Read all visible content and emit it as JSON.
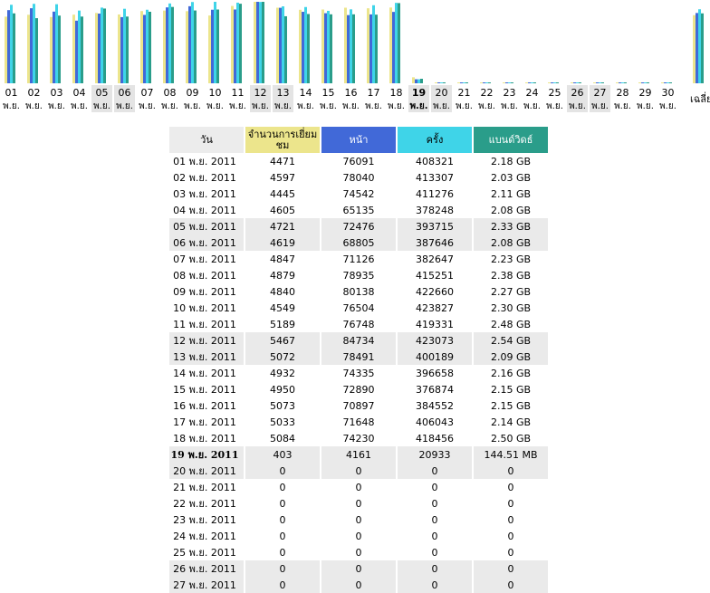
{
  "colors": {
    "visits": "#ece58c",
    "pages": "#4169d8",
    "hits": "#3fd4e8",
    "bandwidth": "#2a9d8a",
    "weekend_bg": "#eaeaea"
  },
  "chart_data": {
    "type": "bar",
    "categories": [
      "01",
      "02",
      "03",
      "04",
      "05",
      "06",
      "07",
      "08",
      "09",
      "10",
      "11",
      "12",
      "13",
      "14",
      "15",
      "16",
      "17",
      "18",
      "19",
      "20",
      "21",
      "22",
      "23",
      "24",
      "25",
      "26",
      "27",
      "28",
      "29",
      "30"
    ],
    "month_label": "พ.ย.",
    "average_label": "เฉลี่ย",
    "highlight_categories": [
      "05",
      "06",
      "12",
      "13",
      "19",
      "20",
      "26",
      "27"
    ],
    "series": [
      {
        "name": "จำนวนการเยี่ยมชม",
        "values": [
          4471,
          4597,
          4445,
          4605,
          4721,
          4619,
          4847,
          4879,
          4840,
          4549,
          5189,
          5467,
          5072,
          4932,
          4950,
          5073,
          5033,
          5084,
          403,
          0,
          0,
          0,
          0,
          0,
          0,
          0,
          0,
          0,
          0,
          0
        ],
        "average": 4570
      },
      {
        "name": "หน้า",
        "values": [
          76091,
          78040,
          74542,
          65135,
          72476,
          68805,
          71126,
          78935,
          80138,
          76504,
          76748,
          84734,
          78491,
          74335,
          72890,
          70897,
          71648,
          74230,
          4161,
          0,
          0,
          0,
          0,
          0,
          0,
          0,
          0,
          0,
          0,
          0
        ],
        "average": 73100
      },
      {
        "name": "ครั้ง",
        "values": [
          408321,
          413307,
          411276,
          378248,
          393715,
          387646,
          382647,
          415251,
          422660,
          423827,
          419331,
          423073,
          400189,
          396658,
          376874,
          384552,
          406043,
          418456,
          20933,
          0,
          0,
          0,
          0,
          0,
          0,
          0,
          0,
          0,
          0,
          0
        ],
        "average": 385000
      },
      {
        "name": "แบนด์วิดธ์",
        "values": [
          2.18,
          2.03,
          2.11,
          2.08,
          2.33,
          2.08,
          2.23,
          2.38,
          2.27,
          2.3,
          2.48,
          2.54,
          2.09,
          2.16,
          2.15,
          2.15,
          2.14,
          2.5,
          0.141,
          0,
          0,
          0,
          0,
          0,
          0,
          0,
          0,
          0,
          0,
          0
        ],
        "average": 2.18
      }
    ]
  },
  "table": {
    "headers": {
      "date": "วัน",
      "visits": "จำนวนการเยี่ยมชม",
      "pages": "หน้า",
      "hits": "ครั้ง",
      "bandwidth": "แบนด์วิดธ์"
    },
    "rows": [
      {
        "date": "01 พ.ย. 2011",
        "visits": "4471",
        "pages": "76091",
        "hits": "408321",
        "bandwidth": "2.18 GB",
        "kind": "normal"
      },
      {
        "date": "02 พ.ย. 2011",
        "visits": "4597",
        "pages": "78040",
        "hits": "413307",
        "bandwidth": "2.03 GB",
        "kind": "normal"
      },
      {
        "date": "03 พ.ย. 2011",
        "visits": "4445",
        "pages": "74542",
        "hits": "411276",
        "bandwidth": "2.11 GB",
        "kind": "normal"
      },
      {
        "date": "04 พ.ย. 2011",
        "visits": "4605",
        "pages": "65135",
        "hits": "378248",
        "bandwidth": "2.08 GB",
        "kind": "normal"
      },
      {
        "date": "05 พ.ย. 2011",
        "visits": "4721",
        "pages": "72476",
        "hits": "393715",
        "bandwidth": "2.33 GB",
        "kind": "weekend"
      },
      {
        "date": "06 พ.ย. 2011",
        "visits": "4619",
        "pages": "68805",
        "hits": "387646",
        "bandwidth": "2.08 GB",
        "kind": "weekend"
      },
      {
        "date": "07 พ.ย. 2011",
        "visits": "4847",
        "pages": "71126",
        "hits": "382647",
        "bandwidth": "2.23 GB",
        "kind": "normal"
      },
      {
        "date": "08 พ.ย. 2011",
        "visits": "4879",
        "pages": "78935",
        "hits": "415251",
        "bandwidth": "2.38 GB",
        "kind": "normal"
      },
      {
        "date": "09 พ.ย. 2011",
        "visits": "4840",
        "pages": "80138",
        "hits": "422660",
        "bandwidth": "2.27 GB",
        "kind": "normal"
      },
      {
        "date": "10 พ.ย. 2011",
        "visits": "4549",
        "pages": "76504",
        "hits": "423827",
        "bandwidth": "2.30 GB",
        "kind": "normal"
      },
      {
        "date": "11 พ.ย. 2011",
        "visits": "5189",
        "pages": "76748",
        "hits": "419331",
        "bandwidth": "2.48 GB",
        "kind": "normal"
      },
      {
        "date": "12 พ.ย. 2011",
        "visits": "5467",
        "pages": "84734",
        "hits": "423073",
        "bandwidth": "2.54 GB",
        "kind": "weekend"
      },
      {
        "date": "13 พ.ย. 2011",
        "visits": "5072",
        "pages": "78491",
        "hits": "400189",
        "bandwidth": "2.09 GB",
        "kind": "weekend"
      },
      {
        "date": "14 พ.ย. 2011",
        "visits": "4932",
        "pages": "74335",
        "hits": "396658",
        "bandwidth": "2.16 GB",
        "kind": "normal"
      },
      {
        "date": "15 พ.ย. 2011",
        "visits": "4950",
        "pages": "72890",
        "hits": "376874",
        "bandwidth": "2.15 GB",
        "kind": "normal"
      },
      {
        "date": "16 พ.ย. 2011",
        "visits": "5073",
        "pages": "70897",
        "hits": "384552",
        "bandwidth": "2.15 GB",
        "kind": "normal"
      },
      {
        "date": "17 พ.ย. 2011",
        "visits": "5033",
        "pages": "71648",
        "hits": "406043",
        "bandwidth": "2.14 GB",
        "kind": "normal"
      },
      {
        "date": "18 พ.ย. 2011",
        "visits": "5084",
        "pages": "74230",
        "hits": "418456",
        "bandwidth": "2.50 GB",
        "kind": "normal"
      },
      {
        "date": "19 พ.ย. 2011",
        "visits": "403",
        "pages": "4161",
        "hits": "20933",
        "bandwidth": "144.51 MB",
        "kind": "today"
      },
      {
        "date": "20 พ.ย. 2011",
        "visits": "0",
        "pages": "0",
        "hits": "0",
        "bandwidth": "0",
        "kind": "weekend"
      },
      {
        "date": "21 พ.ย. 2011",
        "visits": "0",
        "pages": "0",
        "hits": "0",
        "bandwidth": "0",
        "kind": "normal"
      },
      {
        "date": "22 พ.ย. 2011",
        "visits": "0",
        "pages": "0",
        "hits": "0",
        "bandwidth": "0",
        "kind": "normal"
      },
      {
        "date": "23 พ.ย. 2011",
        "visits": "0",
        "pages": "0",
        "hits": "0",
        "bandwidth": "0",
        "kind": "normal"
      },
      {
        "date": "24 พ.ย. 2011",
        "visits": "0",
        "pages": "0",
        "hits": "0",
        "bandwidth": "0",
        "kind": "normal"
      },
      {
        "date": "25 พ.ย. 2011",
        "visits": "0",
        "pages": "0",
        "hits": "0",
        "bandwidth": "0",
        "kind": "normal"
      },
      {
        "date": "26 พ.ย. 2011",
        "visits": "0",
        "pages": "0",
        "hits": "0",
        "bandwidth": "0",
        "kind": "weekend"
      },
      {
        "date": "27 พ.ย. 2011",
        "visits": "0",
        "pages": "0",
        "hits": "0",
        "bandwidth": "0",
        "kind": "weekend"
      }
    ]
  }
}
